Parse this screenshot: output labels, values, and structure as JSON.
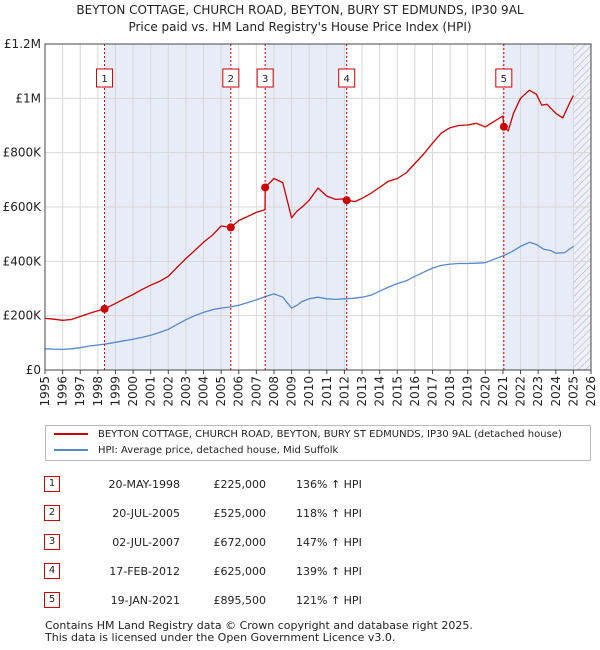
{
  "title_line1": "BEYTON COTTAGE, CHURCH ROAD, BEYTON, BURY ST EDMUNDS, IP30 9AL",
  "title_line2": "Price paid vs. HM Land Registry's House Price Index (HPI)",
  "colors": {
    "property": "#cc0000",
    "hpi": "#5588cc",
    "shade": "#e8ecf8"
  },
  "legend": {
    "property": "BEYTON COTTAGE, CHURCH ROAD, BEYTON, BURY ST EDMUNDS, IP30 9AL (detached house)",
    "hpi": "HPI: Average price, detached house, Mid Suffolk"
  },
  "sales": [
    {
      "n": "1",
      "date": "20-MAY-1998",
      "price": "£225,000",
      "hpi": "136% ↑ HPI"
    },
    {
      "n": "2",
      "date": "20-JUL-2005",
      "price": "£525,000",
      "hpi": "118% ↑ HPI"
    },
    {
      "n": "3",
      "date": "02-JUL-2007",
      "price": "£672,000",
      "hpi": "147% ↑ HPI"
    },
    {
      "n": "4",
      "date": "17-FEB-2012",
      "price": "£625,000",
      "hpi": "139% ↑ HPI"
    },
    {
      "n": "5",
      "date": "19-JAN-2021",
      "price": "£895,500",
      "hpi": "121% ↑ HPI"
    }
  ],
  "footer_line1": "Contains HM Land Registry data © Crown copyright and database right 2025.",
  "footer_line2": "This data is licensed under the Open Government Licence v3.0.",
  "chart_data": {
    "type": "line",
    "title": "BEYTON COTTAGE, CHURCH ROAD, BEYTON, BURY ST EDMUNDS, IP30 9AL",
    "subtitle": "Price paid vs. HM Land Registry's House Price Index (HPI)",
    "xlabel": "",
    "ylabel": "",
    "xlim": [
      1995,
      2026
    ],
    "ylim": [
      0,
      1200000
    ],
    "x_ticks": [
      1995,
      1996,
      1997,
      1998,
      1999,
      2000,
      2001,
      2002,
      2003,
      2004,
      2005,
      2006,
      2007,
      2008,
      2009,
      2010,
      2011,
      2012,
      2013,
      2014,
      2015,
      2016,
      2017,
      2018,
      2019,
      2020,
      2021,
      2022,
      2023,
      2024,
      2025,
      2026
    ],
    "y_ticks": [
      {
        "v": 0,
        "label": "£0"
      },
      {
        "v": 200000,
        "label": "£200K"
      },
      {
        "v": 400000,
        "label": "£400K"
      },
      {
        "v": 600000,
        "label": "£600K"
      },
      {
        "v": 800000,
        "label": "£800K"
      },
      {
        "v": 1000000,
        "label": "£1M"
      },
      {
        "v": 1200000,
        "label": "£1.2M"
      }
    ],
    "shaded_periods": [
      [
        1998.38,
        2005.55
      ],
      [
        2007.5,
        2012.13
      ],
      [
        2021.05,
        2025.0
      ]
    ],
    "hatched_after": 2025.0,
    "sale_markers": [
      {
        "label": "1",
        "x": 1998.38,
        "y": 225000
      },
      {
        "label": "2",
        "x": 2005.55,
        "y": 525000
      },
      {
        "label": "3",
        "x": 2007.5,
        "y": 672000
      },
      {
        "label": "4",
        "x": 2012.13,
        "y": 625000
      },
      {
        "label": "5",
        "x": 2021.05,
        "y": 895500
      }
    ],
    "series": [
      {
        "name": "BEYTON COTTAGE, CHURCH ROAD, BEYTON, BURY ST EDMUNDS, IP30 9AL (detached house)",
        "x": [
          1995.0,
          1995.5,
          1996.0,
          1996.5,
          1997.0,
          1997.5,
          1998.0,
          1998.38,
          1999.0,
          1999.5,
          2000.0,
          2000.5,
          2001.0,
          2001.5,
          2002.0,
          2002.5,
          2003.0,
          2003.5,
          2004.0,
          2004.5,
          2005.0,
          2005.55,
          2006.0,
          2006.5,
          2007.0,
          2007.49,
          2007.5,
          2008.0,
          2008.5,
          2009.0,
          2009.3,
          2009.6,
          2010.0,
          2010.5,
          2011.0,
          2011.5,
          2012.0,
          2012.13,
          2012.6,
          2013.0,
          2013.5,
          2014.0,
          2014.5,
          2015.0,
          2015.5,
          2016.0,
          2016.5,
          2017.0,
          2017.5,
          2018.0,
          2018.5,
          2019.0,
          2019.5,
          2020.0,
          2020.5,
          2021.0,
          2021.05,
          2021.3,
          2021.6,
          2022.0,
          2022.5,
          2022.9,
          2023.2,
          2023.5,
          2024.0,
          2024.4,
          2024.8,
          2025.0
        ],
        "y": [
          190000,
          187000,
          183000,
          186000,
          197000,
          208000,
          218000,
          225000,
          245000,
          262000,
          278000,
          296000,
          312000,
          326000,
          345000,
          378000,
          410000,
          440000,
          470000,
          496000,
          530000,
          525000,
          550000,
          565000,
          580000,
          590000,
          672000,
          705000,
          690000,
          560000,
          585000,
          600000,
          625000,
          670000,
          640000,
          628000,
          630000,
          625000,
          620000,
          632000,
          650000,
          672000,
          695000,
          705000,
          725000,
          760000,
          795000,
          835000,
          872000,
          892000,
          900000,
          902000,
          908000,
          895000,
          915000,
          935000,
          895500,
          880000,
          945000,
          1000000,
          1030000,
          1015000,
          975000,
          978000,
          945000,
          928000,
          985000,
          1010000
        ]
      },
      {
        "name": "HPI: Average price, detached house, Mid Suffolk",
        "x": [
          1995.0,
          1995.5,
          1996.0,
          1996.5,
          1997.0,
          1997.5,
          1998.0,
          1998.5,
          1999.0,
          1999.5,
          2000.0,
          2000.5,
          2001.0,
          2001.5,
          2002.0,
          2002.5,
          2003.0,
          2003.5,
          2004.0,
          2004.5,
          2005.0,
          2005.5,
          2006.0,
          2006.5,
          2007.0,
          2007.5,
          2008.0,
          2008.5,
          2009.0,
          2009.3,
          2009.6,
          2010.0,
          2010.5,
          2011.0,
          2011.5,
          2012.0,
          2012.5,
          2013.0,
          2013.5,
          2014.0,
          2014.5,
          2015.0,
          2015.5,
          2016.0,
          2016.5,
          2017.0,
          2017.5,
          2018.0,
          2018.5,
          2019.0,
          2019.5,
          2020.0,
          2020.5,
          2021.0,
          2021.5,
          2022.0,
          2022.5,
          2022.9,
          2023.3,
          2023.7,
          2024.0,
          2024.5,
          2025.0
        ],
        "y": [
          78000,
          77000,
          76000,
          78000,
          82000,
          88000,
          92000,
          96000,
          102000,
          108000,
          113000,
          120000,
          128000,
          138000,
          150000,
          168000,
          185000,
          200000,
          212000,
          222000,
          228000,
          232000,
          238000,
          248000,
          258000,
          270000,
          280000,
          268000,
          228000,
          238000,
          252000,
          262000,
          268000,
          262000,
          260000,
          262000,
          264000,
          268000,
          275000,
          290000,
          305000,
          318000,
          328000,
          345000,
          360000,
          375000,
          385000,
          390000,
          392000,
          392000,
          393000,
          395000,
          408000,
          420000,
          435000,
          455000,
          470000,
          462000,
          445000,
          440000,
          430000,
          432000,
          455000
        ]
      }
    ]
  }
}
